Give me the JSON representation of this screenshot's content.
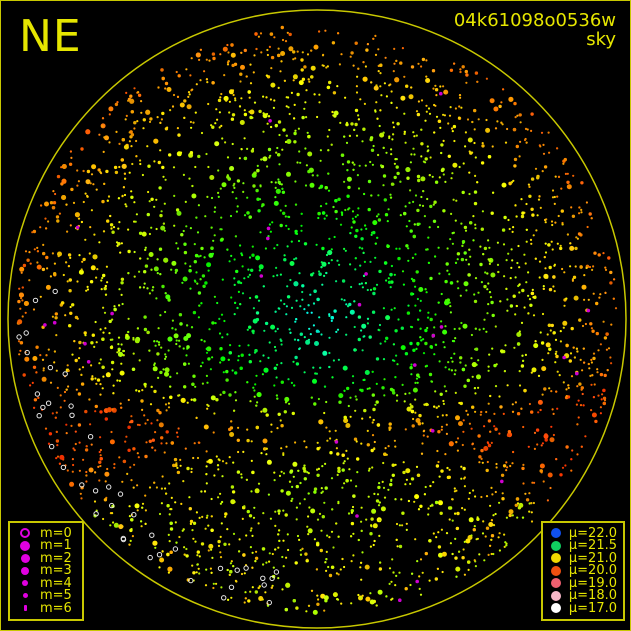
{
  "corner_label": "NE",
  "image_id": "04k61098o0536w",
  "map_type": "sky",
  "chart_data": {
    "type": "scatter",
    "description_visible": "all-sky star map, points sized by magnitude and colored by sky brightness",
    "magnitude_legend": [
      {
        "label": "m=0",
        "style": "ring",
        "color": "#e000e0"
      },
      {
        "label": "m=1",
        "style": "filled",
        "color": "#e000e0"
      },
      {
        "label": "m=2",
        "style": "filled",
        "color": "#e000e0"
      },
      {
        "label": "m=3",
        "style": "filled",
        "color": "#e000e0"
      },
      {
        "label": "m=4",
        "style": "filled",
        "color": "#e000e0"
      },
      {
        "label": "m=5",
        "style": "filled",
        "color": "#e000e0"
      },
      {
        "label": "m=6",
        "style": "filled",
        "color": "#e000e0"
      }
    ],
    "brightness_legend": [
      {
        "label": "μ=22.0",
        "value": 22.0,
        "color": "#1050f0"
      },
      {
        "label": "μ=21.5",
        "value": 21.5,
        "color": "#10d060"
      },
      {
        "label": "μ=21.0",
        "value": 21.0,
        "color": "#f0d800"
      },
      {
        "label": "μ=20.0",
        "value": 20.0,
        "color": "#f05010"
      },
      {
        "label": "μ=19.0",
        "value": 19.0,
        "color": "#f06070"
      },
      {
        "label": "μ=18.0",
        "value": 18.0,
        "color": "#f8b8c8"
      },
      {
        "label": "μ=17.0",
        "value": 17.0,
        "color": "#ffffff"
      }
    ],
    "horizon_color": "#c8c800"
  }
}
